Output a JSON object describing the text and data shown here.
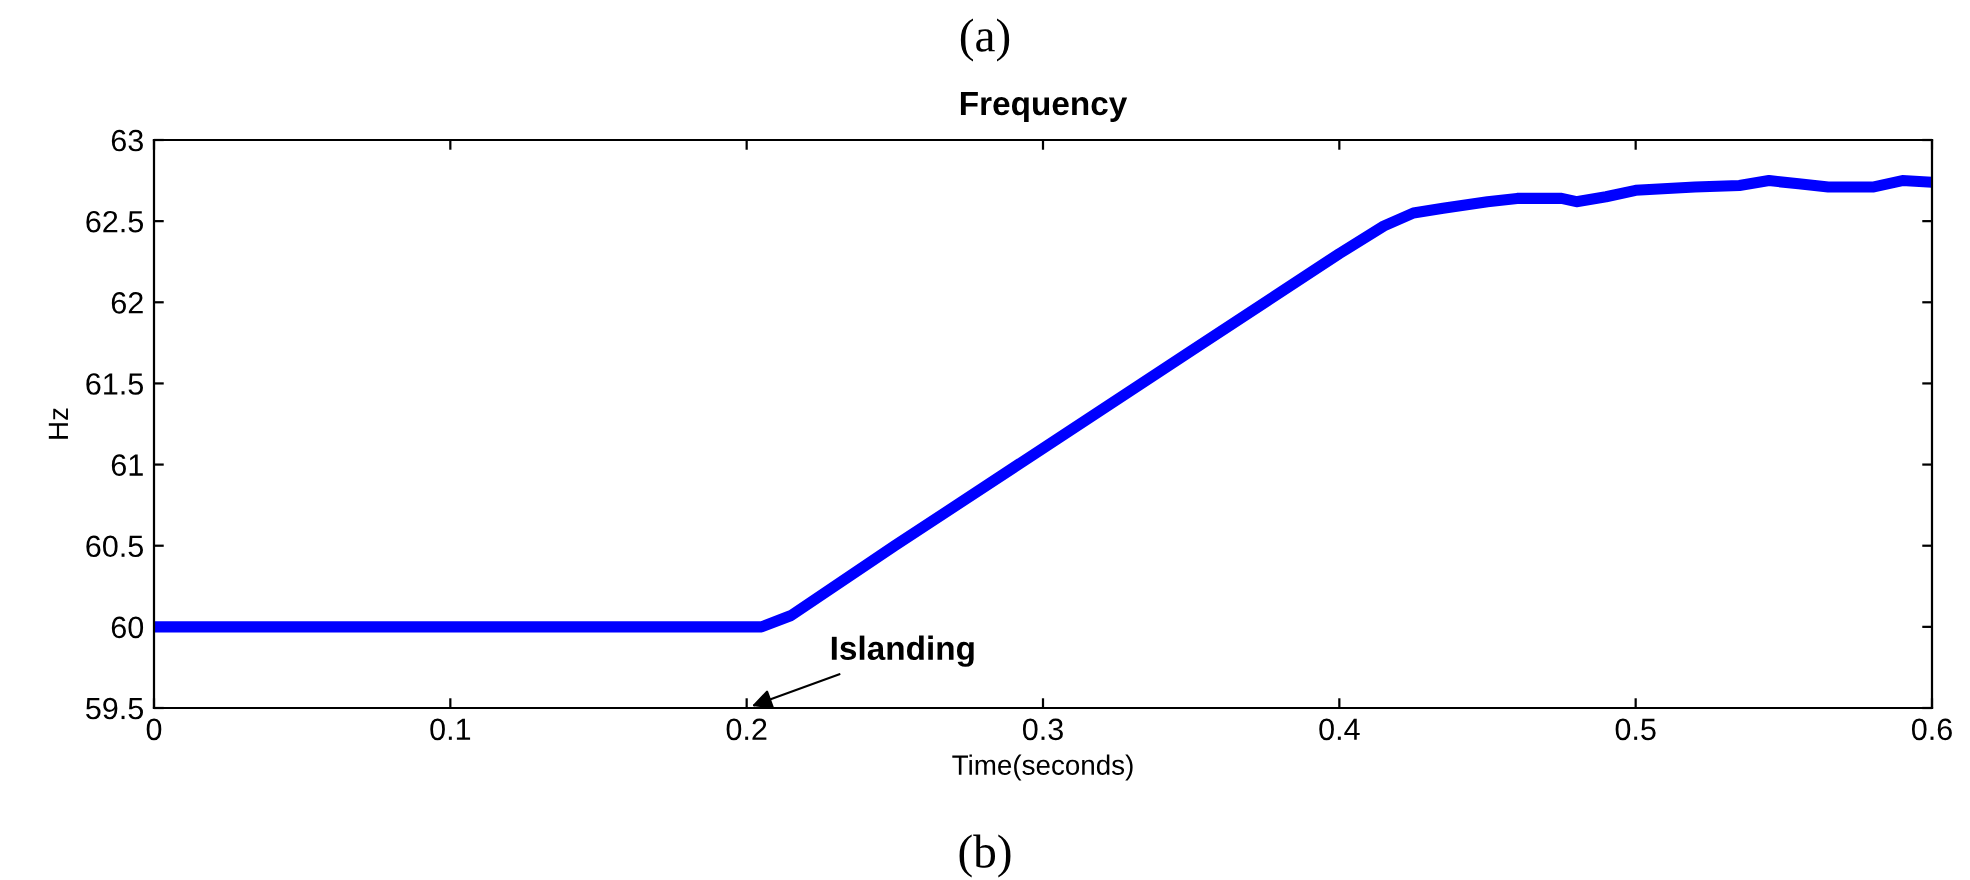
{
  "chart_data": {
    "type": "line",
    "title": "Frequency",
    "xlabel": "Time(seconds)",
    "ylabel": "Hz",
    "x": [
      0,
      0.1,
      0.2,
      0.205,
      0.215,
      0.25,
      0.3,
      0.35,
      0.4,
      0.415,
      0.425,
      0.435,
      0.45,
      0.46,
      0.475,
      0.48,
      0.49,
      0.5,
      0.52,
      0.535,
      0.545,
      0.555,
      0.565,
      0.58,
      0.59,
      0.6
    ],
    "series": [
      {
        "color": "#0000ff",
        "values": [
          60,
          60,
          60,
          60.0,
          60.07,
          60.5,
          61.1,
          61.7,
          62.3,
          62.47,
          62.55,
          62.58,
          62.62,
          62.64,
          62.64,
          62.62,
          62.65,
          62.69,
          62.71,
          62.72,
          62.75,
          62.73,
          62.71,
          62.71,
          62.75,
          62.74
        ]
      }
    ],
    "xlim": [
      0,
      0.6
    ],
    "xticks": [
      0,
      0.1,
      0.2,
      0.3,
      0.4,
      0.5,
      0.6
    ],
    "ylim": [
      59.5,
      63
    ],
    "yticks": [
      59.5,
      60,
      60.5,
      61,
      61.5,
      62,
      62.5,
      63
    ],
    "grid": false,
    "line_style": "solid",
    "marker": "none",
    "annotations": [
      "Islanding",
      "(a)",
      "(b)"
    ]
  }
}
